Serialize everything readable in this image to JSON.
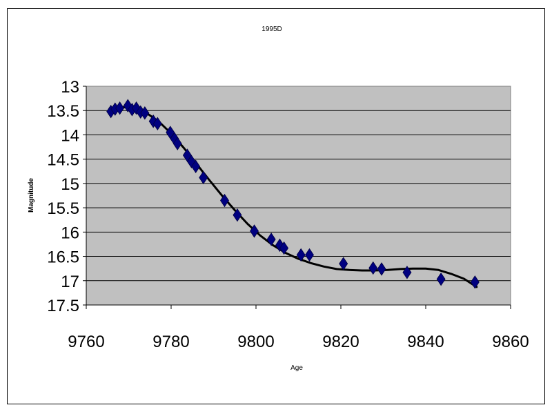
{
  "chart_data": {
    "type": "scatter",
    "title": "1995D",
    "xlabel": "Age",
    "ylabel": "Magnitude",
    "xlim": [
      9760,
      9860
    ],
    "ylim": [
      13,
      17.5
    ],
    "y_inverted": true,
    "x_ticks": [
      "9760",
      "9780",
      "9800",
      "9820",
      "9840",
      "9860"
    ],
    "y_ticks": [
      "13",
      "13.5",
      "14",
      "14.5",
      "15",
      "15.5",
      "16",
      "16.5",
      "17",
      "17.5"
    ],
    "grid": "horizontal",
    "legend": "none",
    "colors": {
      "plot_background": "#c0c0c0",
      "marker": "#000080",
      "trend_line": "#000000",
      "grid": "#000000"
    },
    "points": [
      {
        "x": 9765.8,
        "y": 13.52
      },
      {
        "x": 9766.8,
        "y": 13.47
      },
      {
        "x": 9767.9,
        "y": 13.45
      },
      {
        "x": 9769.8,
        "y": 13.4
      },
      {
        "x": 9770.8,
        "y": 13.48
      },
      {
        "x": 9771.8,
        "y": 13.45
      },
      {
        "x": 9772.8,
        "y": 13.53
      },
      {
        "x": 9773.8,
        "y": 13.55
      },
      {
        "x": 9775.8,
        "y": 13.72
      },
      {
        "x": 9776.8,
        "y": 13.77
      },
      {
        "x": 9779.8,
        "y": 13.95
      },
      {
        "x": 9780.8,
        "y": 14.08
      },
      {
        "x": 9781.5,
        "y": 14.18
      },
      {
        "x": 9783.8,
        "y": 14.42
      },
      {
        "x": 9784.8,
        "y": 14.55
      },
      {
        "x": 9785.8,
        "y": 14.65
      },
      {
        "x": 9787.6,
        "y": 14.88
      },
      {
        "x": 9792.6,
        "y": 15.35
      },
      {
        "x": 9795.6,
        "y": 15.65
      },
      {
        "x": 9799.6,
        "y": 15.98
      },
      {
        "x": 9803.6,
        "y": 16.15
      },
      {
        "x": 9805.6,
        "y": 16.27
      },
      {
        "x": 9806.6,
        "y": 16.33
      },
      {
        "x": 9810.6,
        "y": 16.47
      },
      {
        "x": 9812.6,
        "y": 16.47
      },
      {
        "x": 9820.6,
        "y": 16.65
      },
      {
        "x": 9827.6,
        "y": 16.74
      },
      {
        "x": 9829.6,
        "y": 16.76
      },
      {
        "x": 9835.6,
        "y": 16.83
      },
      {
        "x": 9843.6,
        "y": 16.97
      },
      {
        "x": 9851.6,
        "y": 17.03
      }
    ],
    "trend_line": [
      {
        "x": 9765.5,
        "y": 13.46
      },
      {
        "x": 9768,
        "y": 13.43
      },
      {
        "x": 9771,
        "y": 13.44
      },
      {
        "x": 9774,
        "y": 13.54
      },
      {
        "x": 9777,
        "y": 13.72
      },
      {
        "x": 9780,
        "y": 13.97
      },
      {
        "x": 9783,
        "y": 14.27
      },
      {
        "x": 9786,
        "y": 14.6
      },
      {
        "x": 9789,
        "y": 14.93
      },
      {
        "x": 9792,
        "y": 15.25
      },
      {
        "x": 9795,
        "y": 15.55
      },
      {
        "x": 9798,
        "y": 15.83
      },
      {
        "x": 9801,
        "y": 16.07
      },
      {
        "x": 9804,
        "y": 16.27
      },
      {
        "x": 9807,
        "y": 16.43
      },
      {
        "x": 9810,
        "y": 16.55
      },
      {
        "x": 9813,
        "y": 16.64
      },
      {
        "x": 9816,
        "y": 16.71
      },
      {
        "x": 9819,
        "y": 16.76
      },
      {
        "x": 9822,
        "y": 16.78
      },
      {
        "x": 9825,
        "y": 16.79
      },
      {
        "x": 9828,
        "y": 16.79
      },
      {
        "x": 9831,
        "y": 16.78
      },
      {
        "x": 9834,
        "y": 16.76
      },
      {
        "x": 9837,
        "y": 16.75
      },
      {
        "x": 9840,
        "y": 16.75
      },
      {
        "x": 9843,
        "y": 16.78
      },
      {
        "x": 9846,
        "y": 16.86
      },
      {
        "x": 9849,
        "y": 16.96
      },
      {
        "x": 9852,
        "y": 17.13
      }
    ]
  }
}
